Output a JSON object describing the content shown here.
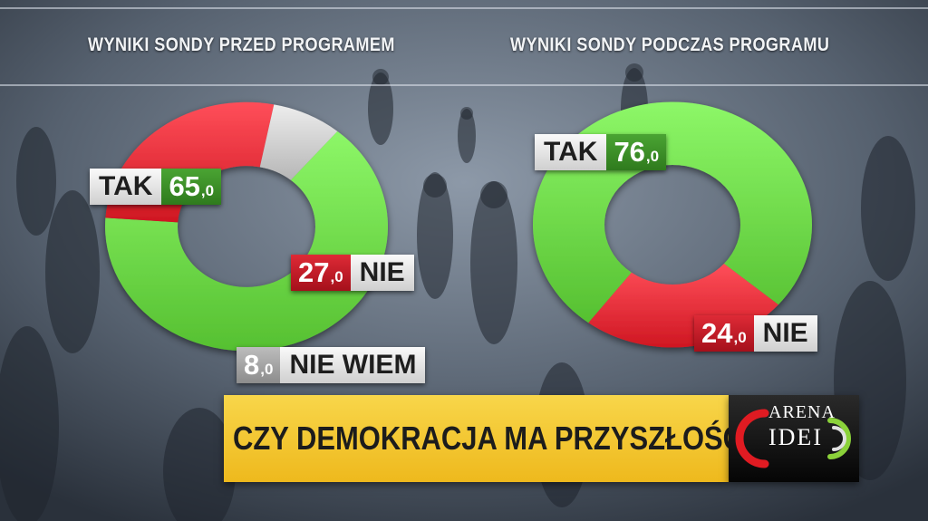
{
  "headings": {
    "left": "WYNIKI SONDY PRZED PROGRAMEM",
    "right": "WYNIKI SONDY PODCZAS PROGRAMU"
  },
  "chart_data": [
    {
      "type": "pie",
      "title": "WYNIKI SONDY PRZED PROGRAMEM",
      "categories": [
        "TAK",
        "NIE",
        "NIE WIEM"
      ],
      "values": [
        65.0,
        27.0,
        8.0
      ],
      "value_text": [
        {
          "main": "65",
          "dec": ",0"
        },
        {
          "main": "27",
          "dec": ",0"
        },
        {
          "main": "8",
          "dec": ",0"
        }
      ],
      "colors": [
        "#6fd94a",
        "#e8303b",
        "#cfcfcf"
      ]
    },
    {
      "type": "pie",
      "title": "WYNIKI SONDY PODCZAS PROGRAMU",
      "categories": [
        "TAK",
        "NIE"
      ],
      "values": [
        76.0,
        24.0
      ],
      "value_text": [
        {
          "main": "76",
          "dec": ",0"
        },
        {
          "main": "24",
          "dec": ",0"
        }
      ],
      "colors": [
        "#6fd94a",
        "#e8303b"
      ]
    }
  ],
  "banner": {
    "title": "CZY DEMOKRACJA MA PRZYSZŁOŚĆ?",
    "color": "#f2c12e"
  },
  "logo": {
    "top": "ARENA",
    "bottom": "IDEI"
  }
}
